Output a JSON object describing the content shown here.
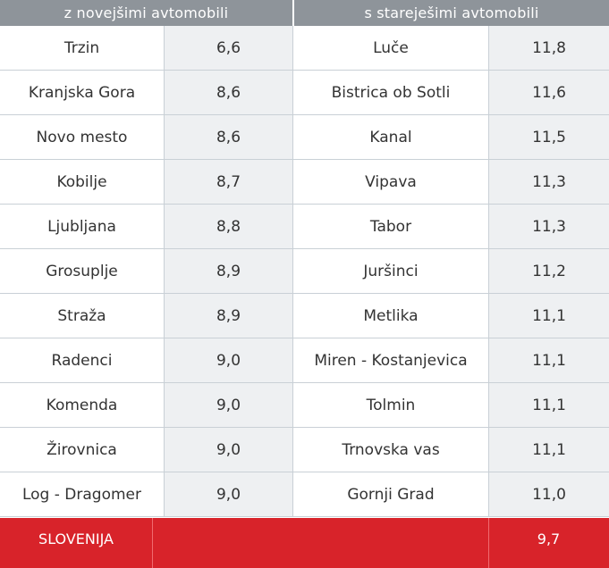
{
  "header": {
    "left": "z novejšimi avtomobili",
    "right": "s stareješimi avtomobili"
  },
  "rows": [
    {
      "newer_place": "Trzin",
      "newer_value": "6,6",
      "older_place": "Luče",
      "older_value": "11,8"
    },
    {
      "newer_place": "Kranjska Gora",
      "newer_value": "8,6",
      "older_place": "Bistrica ob Sotli",
      "older_value": "11,6"
    },
    {
      "newer_place": "Novo mesto",
      "newer_value": "8,6",
      "older_place": "Kanal",
      "older_value": "11,5"
    },
    {
      "newer_place": "Kobilje",
      "newer_value": "8,7",
      "older_place": "Vipava",
      "older_value": "11,3"
    },
    {
      "newer_place": "Ljubljana",
      "newer_value": "8,8",
      "older_place": "Tabor",
      "older_value": "11,3"
    },
    {
      "newer_place": "Grosuplje",
      "newer_value": "8,9",
      "older_place": "Juršinci",
      "older_value": "11,2"
    },
    {
      "newer_place": "Straža",
      "newer_value": "8,9",
      "older_place": "Metlika",
      "older_value": "11,1"
    },
    {
      "newer_place": "Radenci",
      "newer_value": "9,0",
      "older_place": "Miren - Kostanjevica",
      "older_value": "11,1"
    },
    {
      "newer_place": "Komenda",
      "newer_value": "9,0",
      "older_place": "Tolmin",
      "older_value": "11,1"
    },
    {
      "newer_place": "Žirovnica",
      "newer_value": "9,0",
      "older_place": "Trnovska vas",
      "older_value": "11,1"
    },
    {
      "newer_place": "Log - Dragomer",
      "newer_value": "9,0",
      "older_place": "Gornji Grad",
      "older_value": "11,0"
    }
  ],
  "footer": {
    "label": "SLOVENIJA",
    "value": "9,7"
  },
  "colors": {
    "header_bg": "#8e949a",
    "footer_bg": "#d8232a",
    "shaded_col": "#eef0f2"
  }
}
